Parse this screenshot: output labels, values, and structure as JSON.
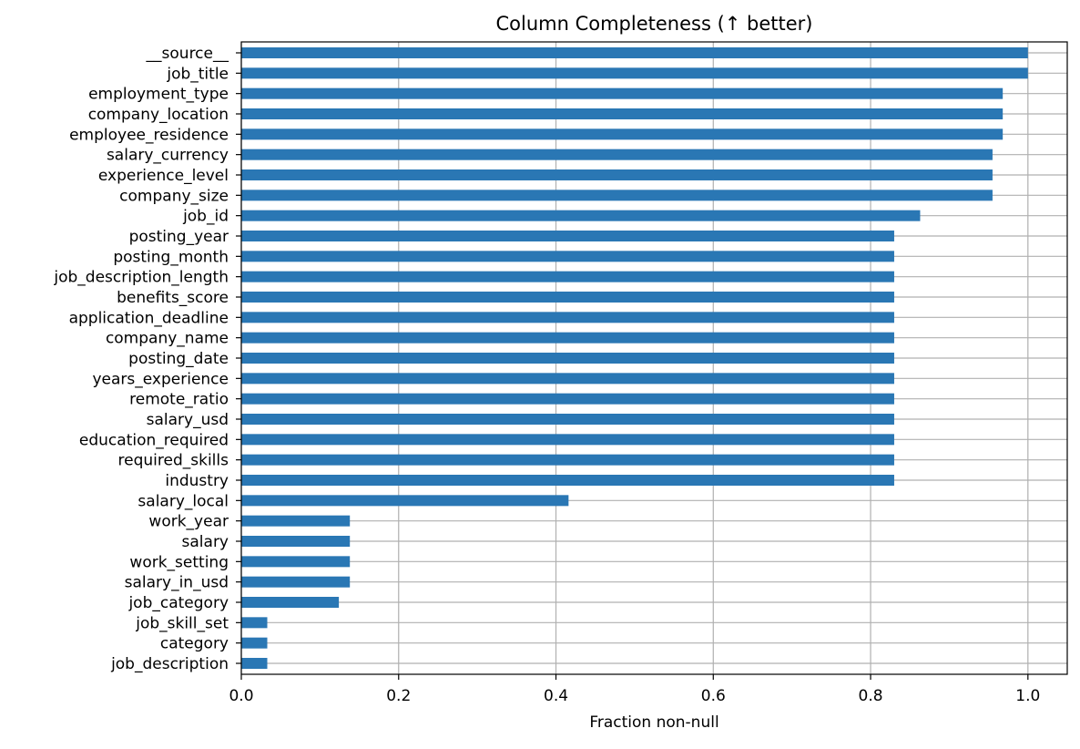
{
  "chart_data": {
    "type": "bar",
    "orientation": "horizontal",
    "title": "Column Completeness (↑ better)",
    "xlabel": "Fraction non-null",
    "ylabel": "",
    "xlim": [
      0.0,
      1.05
    ],
    "xticks": [
      "0.0",
      "0.2",
      "0.4",
      "0.6",
      "0.8",
      "1.0"
    ],
    "grid": true,
    "bar_color": "#2a77b4",
    "categories": [
      "__source__",
      "job_title",
      "employment_type",
      "company_location",
      "employee_residence",
      "salary_currency",
      "experience_level",
      "company_size",
      "job_id",
      "posting_year",
      "posting_month",
      "job_description_length",
      "benefits_score",
      "application_deadline",
      "company_name",
      "posting_date",
      "years_experience",
      "remote_ratio",
      "salary_usd",
      "education_required",
      "required_skills",
      "industry",
      "salary_local",
      "work_year",
      "salary",
      "work_setting",
      "salary_in_usd",
      "job_category",
      "job_skill_set",
      "category",
      "job_description"
    ],
    "values": [
      1.0,
      1.0,
      0.968,
      0.968,
      0.968,
      0.955,
      0.955,
      0.955,
      0.863,
      0.83,
      0.83,
      0.83,
      0.83,
      0.83,
      0.83,
      0.83,
      0.83,
      0.83,
      0.83,
      0.83,
      0.83,
      0.83,
      0.416,
      0.138,
      0.138,
      0.138,
      0.138,
      0.124,
      0.033,
      0.033,
      0.033
    ]
  }
}
